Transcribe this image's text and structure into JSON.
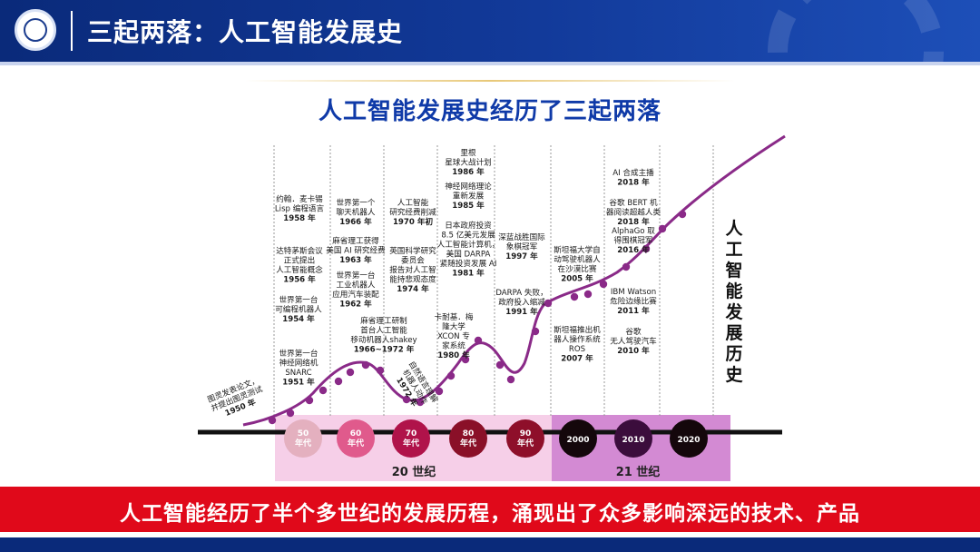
{
  "header": {
    "title": "三起两落：人工智能发展史"
  },
  "subtitle": "人工智能发展史经历了三起两落",
  "side_title": "人工智能发展历史",
  "banner": "人工智能经历了半个多世纪的发展历程，涌现出了众多影响深远的技术、产品",
  "centuries": [
    {
      "label": "20 世纪"
    },
    {
      "label": "21 世纪"
    }
  ],
  "decades": [
    {
      "label": "50\n年代",
      "color": "#e4b0bf"
    },
    {
      "label": "60\n年代",
      "color": "#e05a8c"
    },
    {
      "label": "70\n年代",
      "color": "#b0134a"
    },
    {
      "label": "80\n年代",
      "color": "#8a1028"
    },
    {
      "label": "90\n年代",
      "color": "#8e0f2a"
    },
    {
      "label": "2000",
      "color": "#14070b"
    },
    {
      "label": "2010",
      "color": "#3b0d3c"
    },
    {
      "label": "2020",
      "color": "#14070b"
    }
  ],
  "events": [
    {
      "text": "图灵发表论文，\n并提出图灵测试\n1950 年"
    },
    {
      "text": "世界第一台\n神经网络机\nSNARC\n1951 年"
    },
    {
      "text": "世界第一台\n可编程机器人\n1954 年"
    },
    {
      "text": "达特茅斯会议\n正式提出\n人工智能概念\n1956 年"
    },
    {
      "text": "约翰．麦卡锡\nLisp 编程语言\n1958 年"
    },
    {
      "text": "世界第一台\n工业机器人\n应用汽车装配\n1962 年"
    },
    {
      "text": "麻省理工获得\n美国 AI 研究经费\n1963 年"
    },
    {
      "text": "世界第一个\n聊天机器人\n1966 年"
    },
    {
      "text": "麻省理工研制\n首台人工智能\n移动机器人shakey\n1966~1972 年"
    },
    {
      "text": "人工智能\n研究经费削减\n1970 年初"
    },
    {
      "text": "自然语言理解\n机器人动作\n1972 年"
    },
    {
      "text": "英国科学研究\n委员会\n报告对人工智\n能持悲观态度\n1974 年"
    },
    {
      "text": "卡耐基．梅\n隆大学\nXCON 专\n家系统\n1980 年"
    },
    {
      "text": "日本政府投资\n8.5 亿美元发展\n人工智能计算机，\n美国 DARPA\n紧随投资发展 AI\n1981 年"
    },
    {
      "text": "神经网络理论\n重新发展\n1985 年"
    },
    {
      "text": "里根\n星球大战计划\n1986 年"
    },
    {
      "text": "DARPA 失败，\n政府投入缩减\n1991 年"
    },
    {
      "text": "深蓝战胜国际\n象棋冠军\n1997 年"
    },
    {
      "text": "斯坦福大学自\n动驾驶机器人\n在沙漠比赛\n2005 年"
    },
    {
      "text": "斯坦福推出机\n器人操作系统\nROS\n2007 年"
    },
    {
      "text": "谷歌\n无人驾驶汽车\n2010 年"
    },
    {
      "text": "IBM Watson\n危险边缘比赛\n2011 年"
    },
    {
      "text": "AlphaGo 取\n得围棋冠军\n2016 年"
    },
    {
      "text": "谷歌 BERT 机\n器阅读超越人类\n2018 年"
    },
    {
      "text": "AI 合成主播\n2018 年"
    }
  ]
}
